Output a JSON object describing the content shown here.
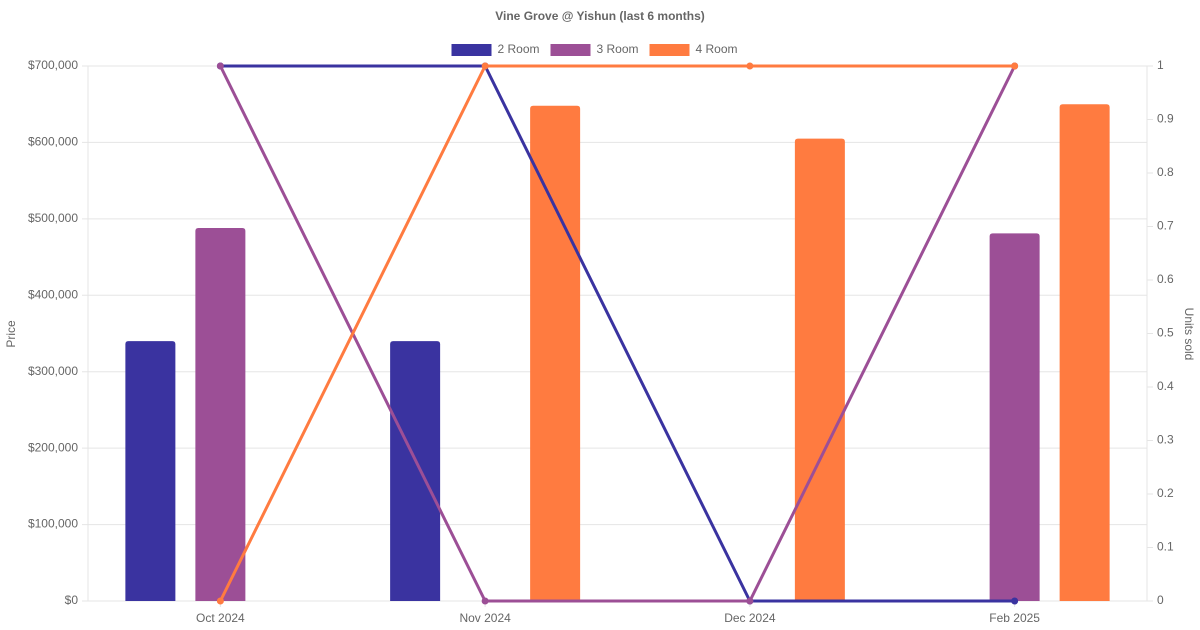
{
  "chart_data": {
    "type": "bar-line",
    "title": "Vine Grove @ Yishun (last 6 months)",
    "y_label": "Price",
    "y2_label": "Units sold",
    "categories": [
      "Oct 2024",
      "Nov 2024",
      "Dec 2024",
      "Feb 2025"
    ],
    "ylim": [
      0,
      700000
    ],
    "yticks": [
      {
        "value": 0,
        "label": "$0"
      },
      {
        "value": 100000,
        "label": "$100,000"
      },
      {
        "value": 200000,
        "label": "$200,000"
      },
      {
        "value": 300000,
        "label": "$300,000"
      },
      {
        "value": 400000,
        "label": "$400,000"
      },
      {
        "value": 500000,
        "label": "$500,000"
      },
      {
        "value": 600000,
        "label": "$600,000"
      },
      {
        "value": 700000,
        "label": "$700,000"
      }
    ],
    "y2lim": [
      0,
      1
    ],
    "y2ticks": [
      0,
      0.1,
      0.2,
      0.3,
      0.4,
      0.5,
      0.6,
      0.7,
      0.8,
      0.9,
      1
    ],
    "grid": true,
    "legend": "top",
    "series": [
      {
        "name": "2 Room",
        "color": "#3a33a0",
        "values": [
          340000,
          340000,
          null,
          null
        ],
        "units_sold": [
          1,
          1,
          0,
          0
        ]
      },
      {
        "name": "3 Room",
        "color": "#9c4f96",
        "values": [
          488000,
          null,
          null,
          481000
        ],
        "units_sold": [
          1,
          0,
          0,
          1
        ]
      },
      {
        "name": "4 Room",
        "color": "#ff7b40",
        "values": [
          null,
          648000,
          605000,
          650000
        ],
        "units_sold": [
          0,
          1,
          1,
          1
        ]
      }
    ]
  }
}
